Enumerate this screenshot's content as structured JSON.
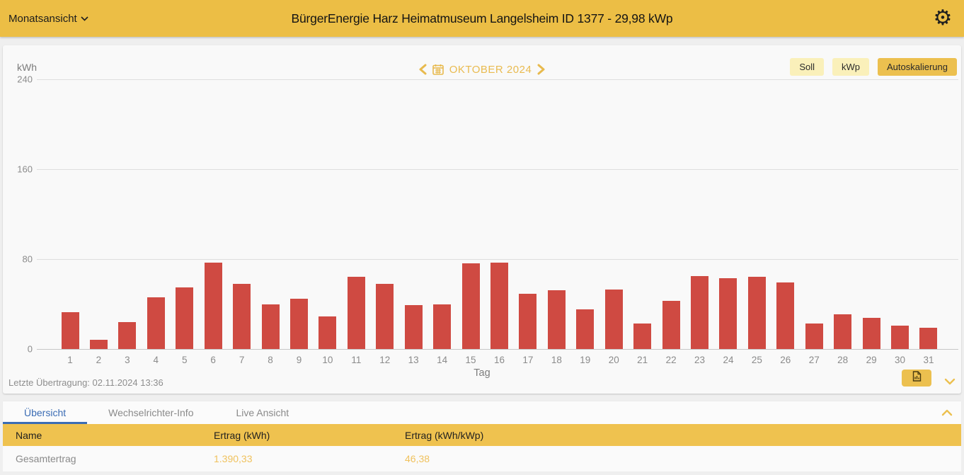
{
  "topbar": {
    "view_selector": "Monatsansicht",
    "title": "BürgerEnergie Harz Heimatmuseum Langelsheim ID 1377 - 29,98 kWp"
  },
  "chart": {
    "unit_label": "kWh",
    "period_label": "OKTOBER 2024",
    "buttons": {
      "soll": "Soll",
      "kwp": "kWp",
      "autoscale": "Autoskalierung"
    },
    "last_transmission": "Letzte Übertragung: 02.11.2024 13:36"
  },
  "chart_data": {
    "type": "bar",
    "title": "OKTOBER 2024",
    "xlabel": "Tag",
    "ylabel": "kWh",
    "ylim": [
      0,
      240
    ],
    "yticks": [
      0,
      80,
      160,
      240
    ],
    "grid": true,
    "bar_color": "#cf4a42",
    "categories": [
      1,
      2,
      3,
      4,
      5,
      6,
      7,
      8,
      9,
      10,
      11,
      12,
      13,
      14,
      15,
      16,
      17,
      18,
      19,
      20,
      21,
      22,
      23,
      24,
      25,
      26,
      27,
      28,
      29,
      30,
      31
    ],
    "values": [
      33,
      8,
      24,
      46,
      55,
      77,
      58,
      40,
      45,
      29,
      64,
      58,
      39,
      40,
      76,
      77,
      49,
      52,
      35,
      53,
      23,
      43,
      65,
      63,
      64,
      59,
      23,
      31,
      28,
      21,
      19
    ]
  },
  "tabs": [
    {
      "label": "Übersicht",
      "active": true
    },
    {
      "label": "Wechselrichter-Info",
      "active": false
    },
    {
      "label": "Live Ansicht",
      "active": false
    }
  ],
  "table": {
    "headers": [
      "Name",
      "Ertrag (kWh)",
      "Ertrag (kWh/kWp)"
    ],
    "rows": [
      [
        "Gesamtertrag",
        "1.390,33",
        "46,38"
      ]
    ]
  },
  "colors": {
    "topbar": "#ecbe45",
    "accent_gold": "#e8ba4e",
    "button_pale": "#faf0ba",
    "button_active": "#ecc04f",
    "bar_red": "#cf4a42",
    "tab_active_blue": "#3b6cb4",
    "value_amber": "#f0c25e"
  }
}
